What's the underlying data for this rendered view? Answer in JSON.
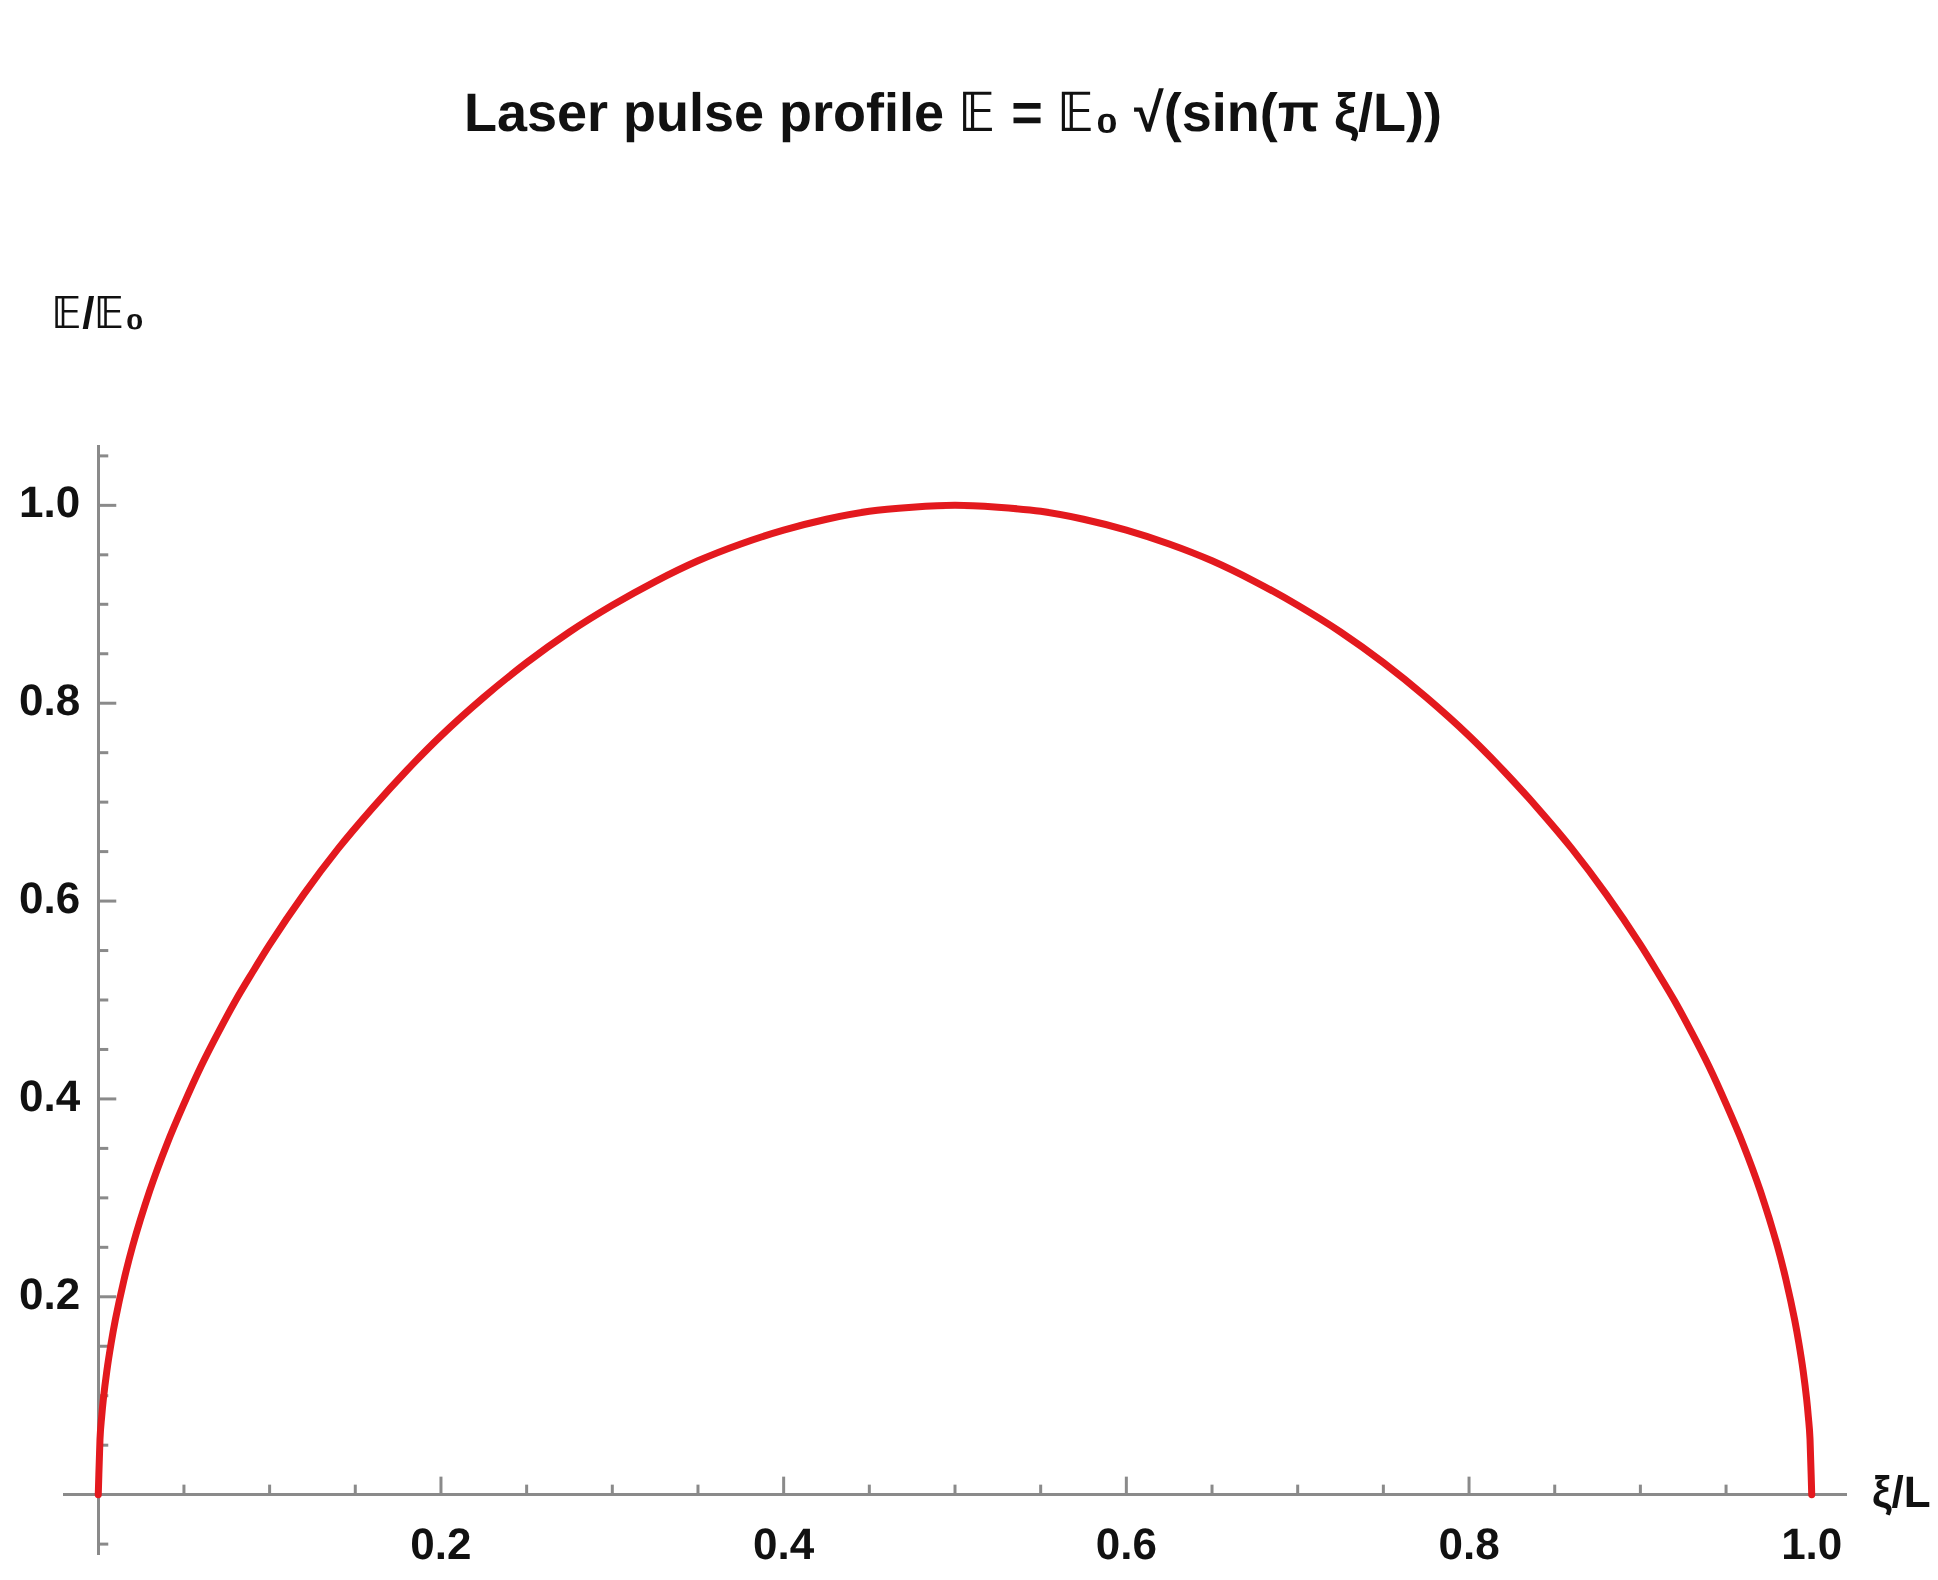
{
  "chart_data": {
    "type": "line",
    "title": "Laser pulse profile 𝔼 = 𝔼₀ √(sin(π ξ/L))",
    "xlabel": "ξ/L",
    "ylabel": "𝔼/𝔼₀",
    "x": [
      0,
      0.001,
      0.002,
      0.003,
      0.005,
      0.0075,
      0.01,
      0.015,
      0.02,
      0.03,
      0.04,
      0.05,
      0.06,
      0.07,
      0.08,
      0.09,
      0.1,
      0.12,
      0.14,
      0.16,
      0.18,
      0.2,
      0.225,
      0.25,
      0.275,
      0.3,
      0.325,
      0.35,
      0.375,
      0.4,
      0.425,
      0.45,
      0.475,
      0.5,
      0.525,
      0.55,
      0.575,
      0.6,
      0.625,
      0.65,
      0.675,
      0.7,
      0.725,
      0.75,
      0.775,
      0.8,
      0.82,
      0.84,
      0.86,
      0.88,
      0.9,
      0.91,
      0.92,
      0.93,
      0.94,
      0.95,
      0.96,
      0.97,
      0.98,
      0.985,
      0.99,
      0.9925,
      0.995,
      0.997,
      0.998,
      0.999,
      1
    ],
    "series": [
      {
        "color": "#e3191e",
        "values": [
          0,
          0.056,
          0.079,
          0.097,
          0.125,
          0.153,
          0.177,
          0.217,
          0.251,
          0.307,
          0.354,
          0.395,
          0.433,
          0.467,
          0.499,
          0.528,
          0.556,
          0.607,
          0.653,
          0.694,
          0.732,
          0.767,
          0.806,
          0.841,
          0.872,
          0.899,
          0.923,
          0.944,
          0.961,
          0.975,
          0.986,
          0.994,
          0.998,
          1,
          0.998,
          0.994,
          0.986,
          0.975,
          0.961,
          0.944,
          0.923,
          0.899,
          0.872,
          0.841,
          0.806,
          0.767,
          0.732,
          0.694,
          0.653,
          0.607,
          0.556,
          0.528,
          0.499,
          0.467,
          0.433,
          0.395,
          0.354,
          0.307,
          0.251,
          0.217,
          0.177,
          0.153,
          0.125,
          0.097,
          0.079,
          0.056,
          0
        ]
      }
    ],
    "xlim": [
      -0.02,
      1.02
    ],
    "ylim": [
      -0.06,
      1.06
    ],
    "xticks": [
      {
        "value": 0.05,
        "label": null
      },
      {
        "value": 0.1,
        "label": null
      },
      {
        "value": 0.15,
        "label": null
      },
      0.2,
      {
        "value": 0.25,
        "label": null
      },
      {
        "value": 0.3,
        "label": null
      },
      {
        "value": 0.35,
        "label": null
      },
      0.4,
      {
        "value": 0.45,
        "label": null
      },
      {
        "value": 0.5,
        "label": null
      },
      {
        "value": 0.55,
        "label": null
      },
      0.6,
      {
        "value": 0.65,
        "label": null
      },
      {
        "value": 0.7,
        "label": null
      },
      {
        "value": 0.75,
        "label": null
      },
      0.8,
      {
        "value": 0.85,
        "label": null
      },
      {
        "value": 0.9,
        "label": null
      },
      {
        "value": 0.95,
        "label": null
      },
      {
        "value": 1,
        "label": "1.0"
      }
    ],
    "yticks": [
      {
        "value": -0.05,
        "label": null
      },
      {
        "value": 0.05,
        "label": null
      },
      {
        "value": 0.1,
        "label": null
      },
      {
        "value": 0.15,
        "label": null
      },
      0.2,
      {
        "value": 0.25,
        "label": null
      },
      {
        "value": 0.3,
        "label": null
      },
      {
        "value": 0.35,
        "label": null
      },
      0.4,
      {
        "value": 0.45,
        "label": null
      },
      {
        "value": 0.5,
        "label": null
      },
      {
        "value": 0.55,
        "label": null
      },
      0.6,
      {
        "value": 0.65,
        "label": null
      },
      {
        "value": 0.7,
        "label": null
      },
      {
        "value": 0.75,
        "label": null
      },
      0.8,
      {
        "value": 0.85,
        "label": null
      },
      {
        "value": 0.9,
        "label": null
      },
      {
        "value": 0.95,
        "label": null
      },
      {
        "value": 1,
        "label": "1.0"
      },
      {
        "value": 1.05,
        "label": null
      }
    ],
    "grid": false,
    "legend": false,
    "marker": "none",
    "line_style": "solid"
  }
}
